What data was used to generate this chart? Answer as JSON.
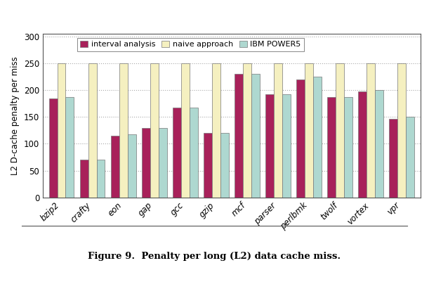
{
  "categories": [
    "bzip2",
    "crafty",
    "eon",
    "gap",
    "gcc",
    "gzip",
    "mcf",
    "parser",
    "perlbmk",
    "twolf",
    "vortex",
    "vpr"
  ],
  "interval_analysis": [
    185,
    70,
    115,
    130,
    167,
    120,
    230,
    193,
    220,
    187,
    198,
    147
  ],
  "naive_approach": [
    250,
    250,
    250,
    250,
    250,
    250,
    250,
    250,
    250,
    250,
    250,
    250
  ],
  "ibm_power5": [
    187,
    70,
    117,
    130,
    168,
    120,
    230,
    193,
    225,
    187,
    200,
    150
  ],
  "bar_colors": {
    "interval_analysis": "#a8215a",
    "naive_approach": "#f5f0c0",
    "ibm_power5": "#aed8d0"
  },
  "bar_edge_color": "#777777",
  "ylabel": "L2 D-cache penalty per miss",
  "ylim": [
    0,
    305
  ],
  "yticks": [
    0,
    50,
    100,
    150,
    200,
    250,
    300
  ],
  "legend_labels": [
    "interval analysis",
    "naive approach",
    "IBM POWER5"
  ],
  "caption": "Figure 9.  Penalty per long (L2) data cache miss.",
  "grid_color": "#aaaaaa",
  "bar_width": 0.27,
  "figure_width": 6.11,
  "figure_height": 4.01,
  "dpi": 100
}
